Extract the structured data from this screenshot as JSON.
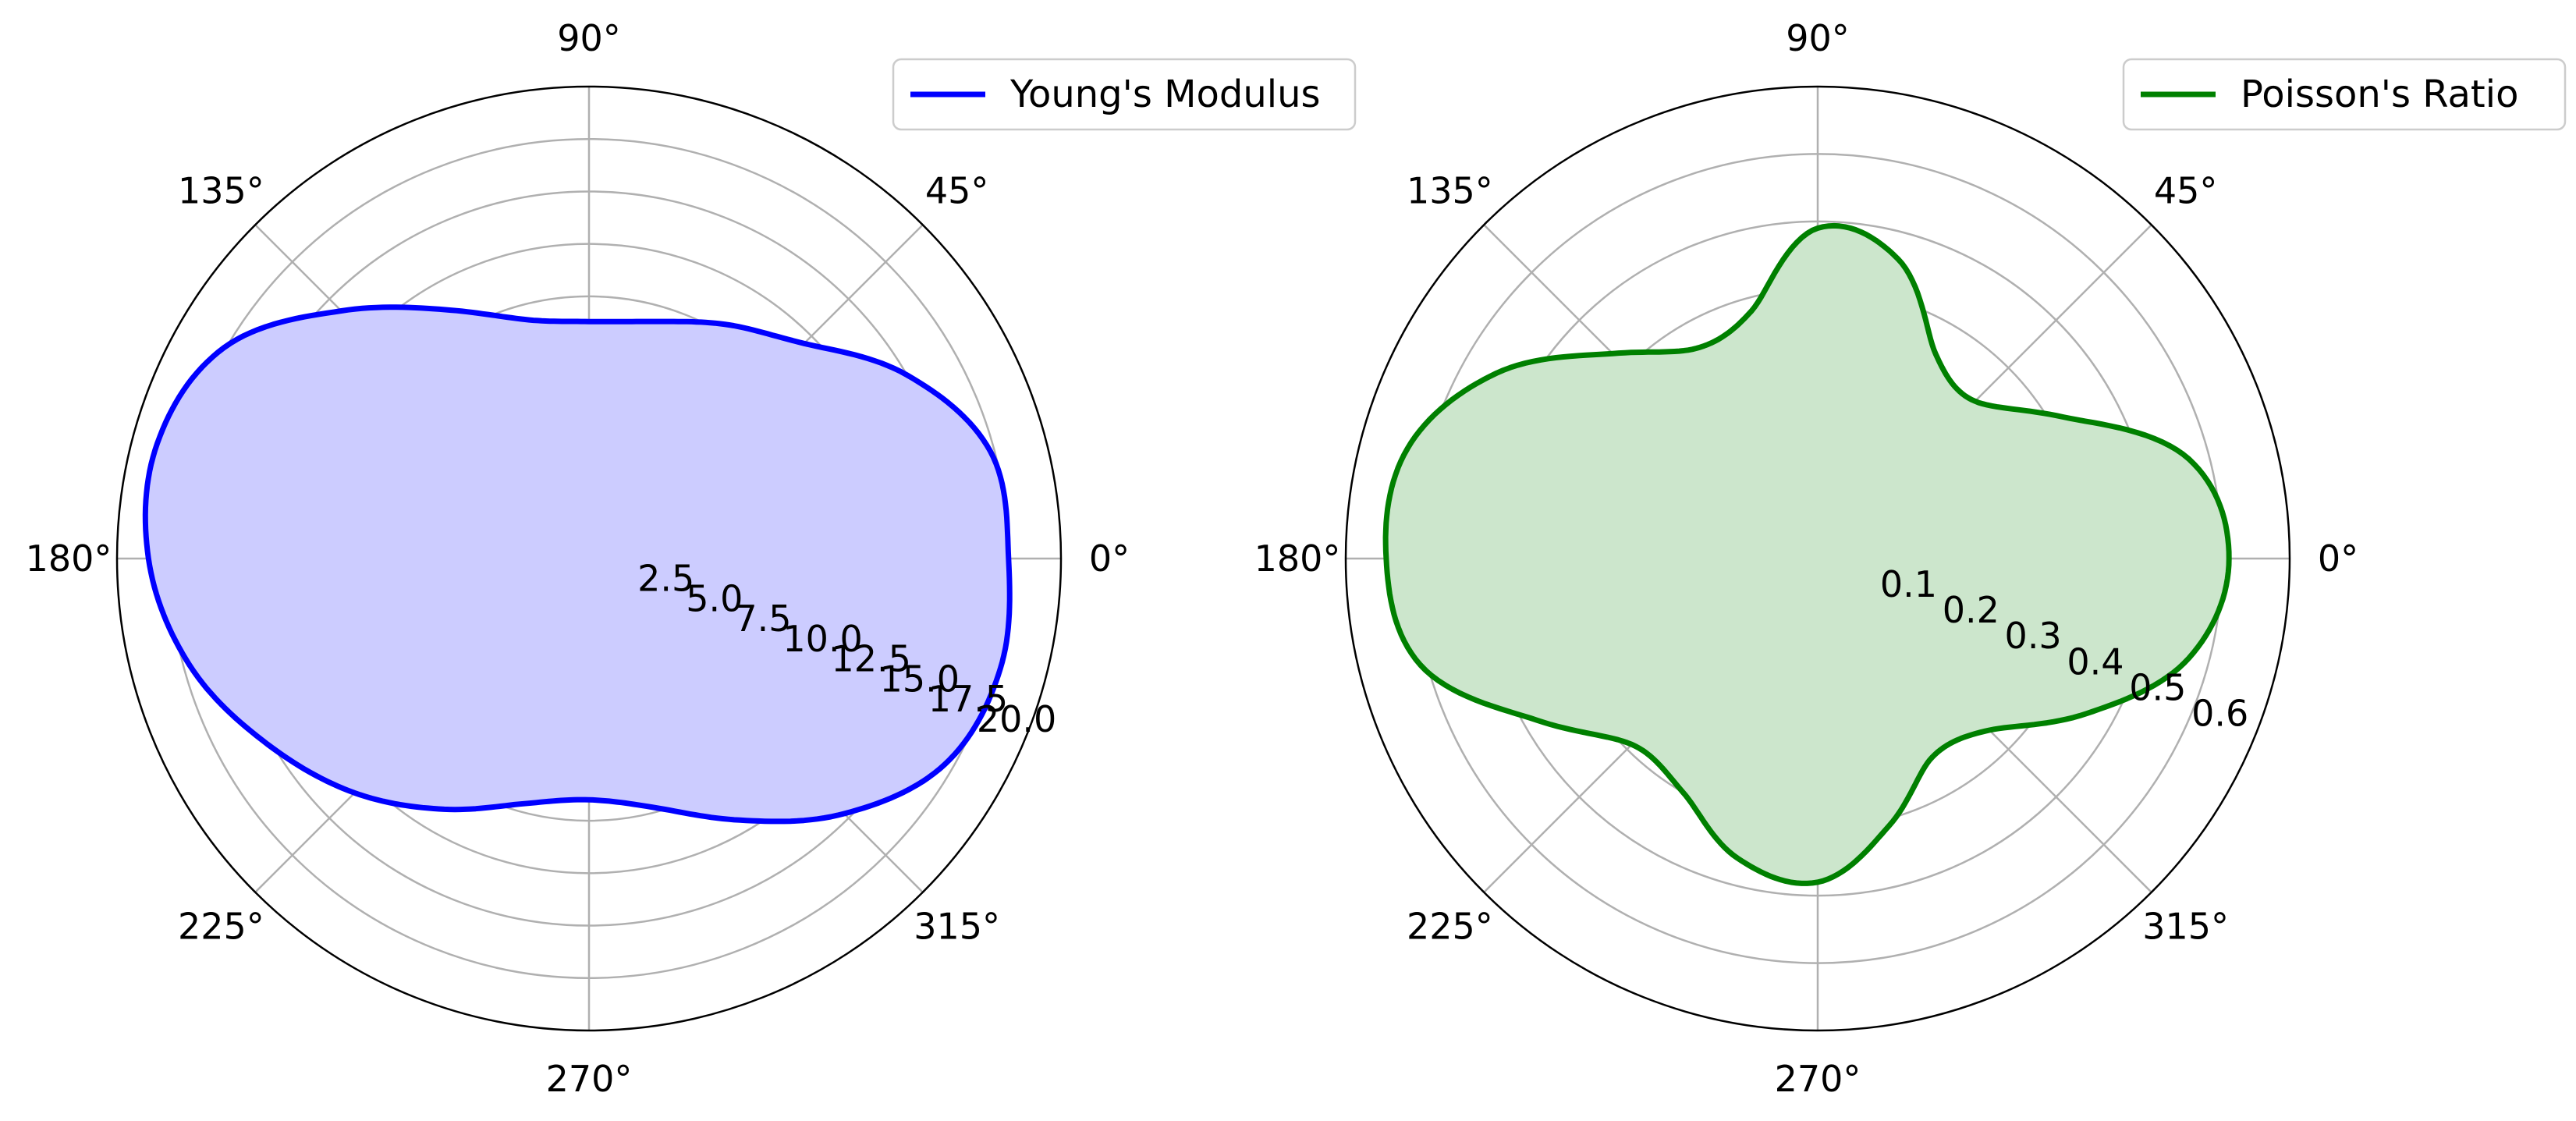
{
  "chart_data": [
    {
      "type": "polar-area",
      "angular_ticks": [
        "0°",
        "45°",
        "90°",
        "135°",
        "180°",
        "225°",
        "270°",
        "315°"
      ],
      "radial_ticks": [
        "2.5",
        "5.0",
        "7.5",
        "10.0",
        "12.5",
        "15.0",
        "17.5",
        "20.0"
      ],
      "rlim": [
        0,
        22.5
      ],
      "grid": true,
      "legend_position": "top-right",
      "series": [
        {
          "name": "Young's Modulus",
          "color": "#0000ff",
          "fill_color": "#ccccff",
          "theta_deg": [
            0,
            15,
            30,
            45,
            60,
            75,
            90,
            105,
            120,
            135,
            150,
            165,
            180,
            195,
            210,
            225,
            240,
            255,
            270,
            285,
            300,
            315,
            330,
            345
          ],
          "r": [
            20.0,
            19.8,
            17.5,
            14.5,
            12.9,
            11.7,
            11.3,
            11.8,
            13.7,
            16.7,
            20.1,
            21.3,
            21.0,
            19.7,
            17.7,
            15.8,
            13.8,
            12.1,
            11.5,
            12.3,
            14.4,
            17.2,
            19.6,
            20.3
          ]
        }
      ]
    },
    {
      "type": "polar-area",
      "angular_ticks": [
        "0°",
        "45°",
        "90°",
        "135°",
        "180°",
        "225°",
        "270°",
        "315°"
      ],
      "radial_ticks": [
        "0.1",
        "0.2",
        "0.3",
        "0.4",
        "0.5",
        "0.6"
      ],
      "rlim": [
        0,
        0.7
      ],
      "grid": true,
      "legend_position": "top-right",
      "series": [
        {
          "name": "Poisson's Ratio",
          "color": "#008000",
          "fill_color": "#cce6cc",
          "theta_deg": [
            0,
            15,
            30,
            45,
            60,
            75,
            90,
            105,
            120,
            135,
            150,
            165,
            180,
            195,
            210,
            225,
            240,
            255,
            270,
            285,
            300,
            315,
            330,
            345
          ],
          "r": [
            0.61,
            0.57,
            0.42,
            0.33,
            0.35,
            0.46,
            0.49,
            0.38,
            0.36,
            0.43,
            0.55,
            0.63,
            0.64,
            0.61,
            0.48,
            0.39,
            0.4,
            0.46,
            0.48,
            0.41,
            0.34,
            0.36,
            0.46,
            0.57
          ]
        }
      ]
    }
  ]
}
